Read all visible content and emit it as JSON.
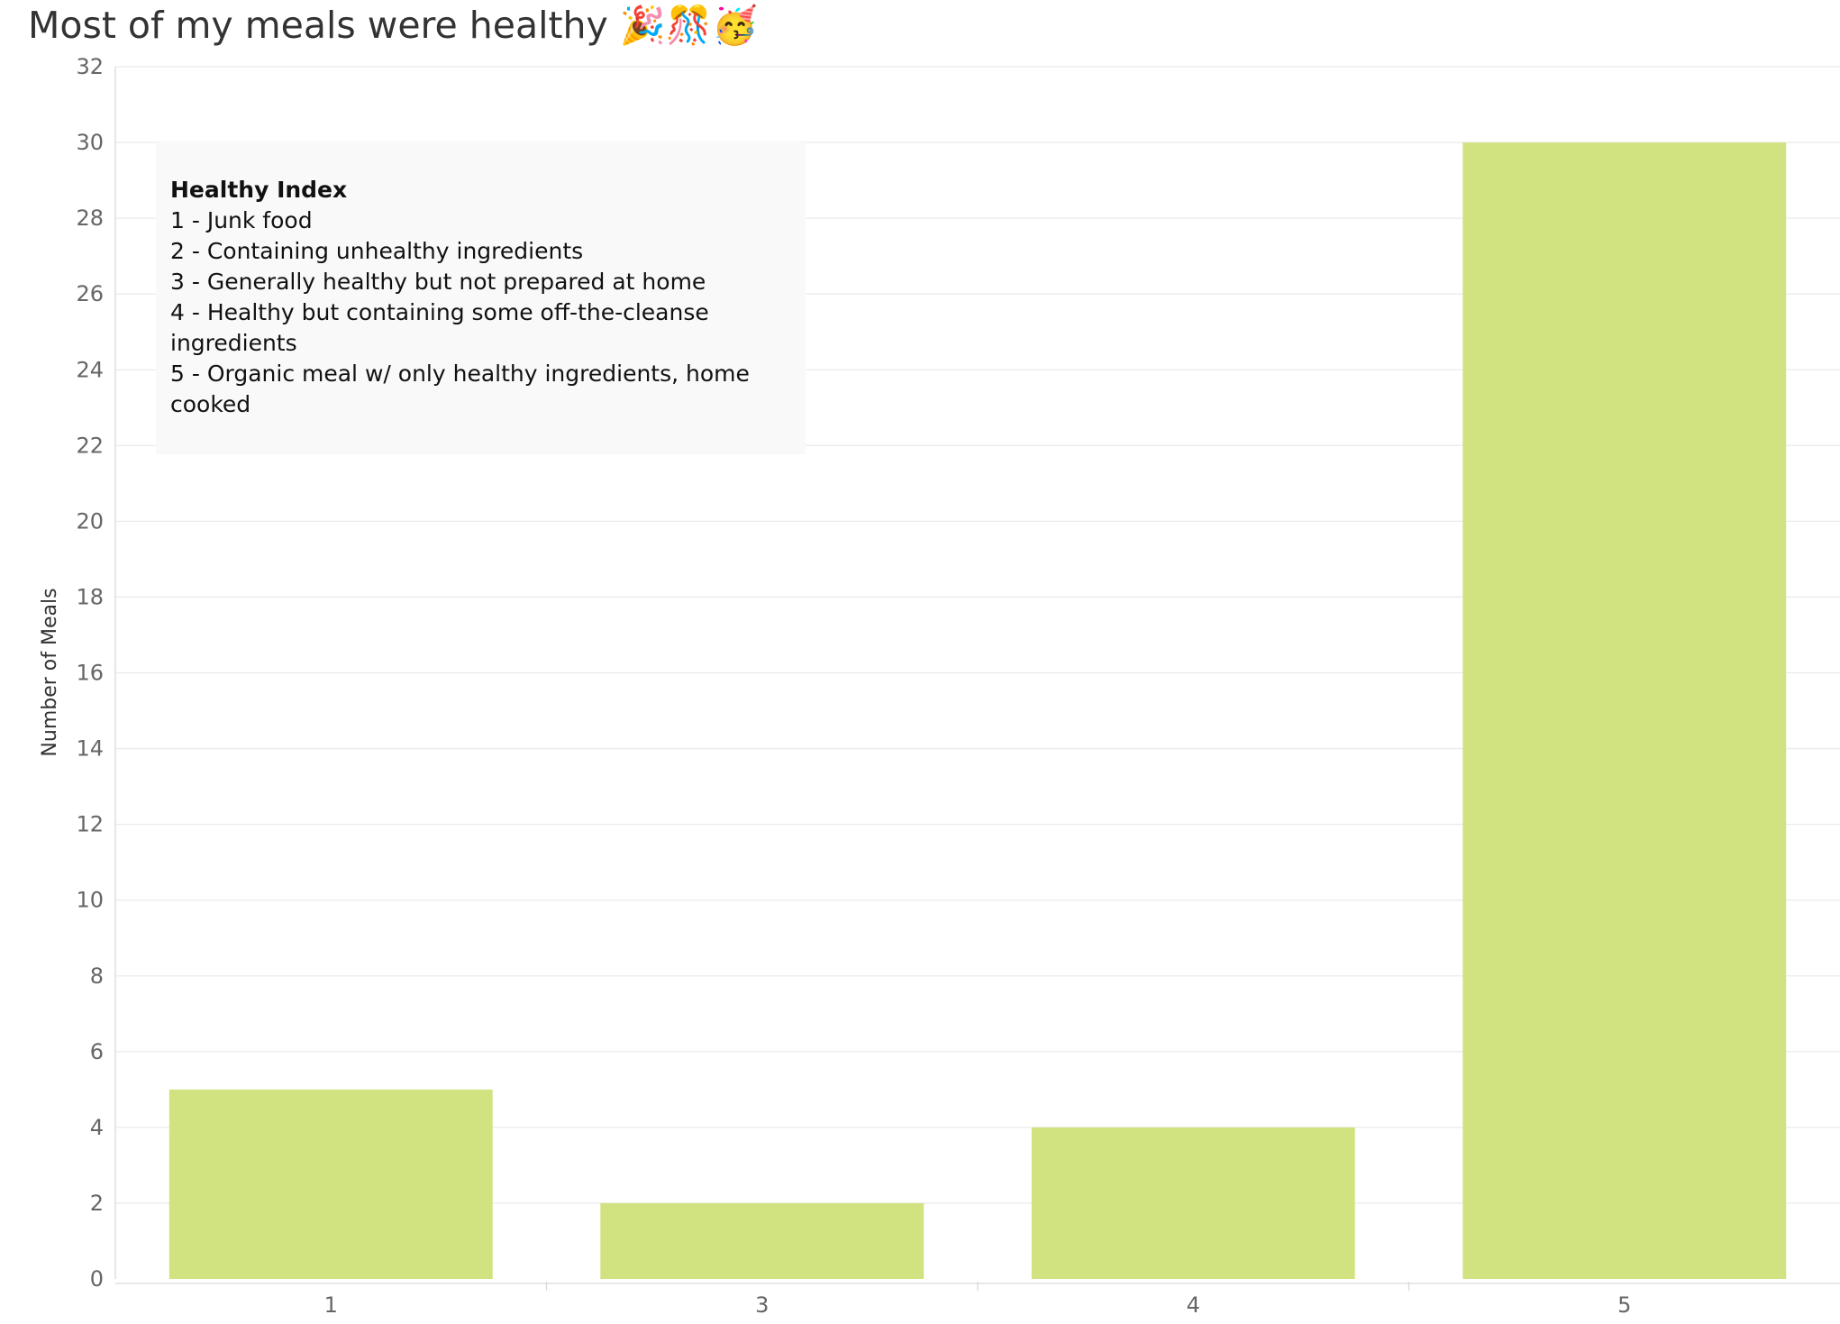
{
  "title": "Most of my meals were healthy 🎉🎊🥳",
  "annotation": {
    "heading": "Healthy Index",
    "items": [
      "1 - Junk food",
      "2 - Containing unhealthy ingredients",
      "3 - Generally healthy but not prepared at home",
      "4 - Healthy but containing some off-the-cleanse ingredients",
      "5 - Organic meal w/ only healthy ingredients, home cooked"
    ]
  },
  "colors": {
    "bar": "#d1e281",
    "annotation_bg": "#f9f9f9",
    "gridline": "#ebebeb"
  },
  "chart_data": {
    "type": "bar",
    "title": "Most of my meals were healthy 🎉🎊🥳",
    "xlabel": "",
    "ylabel": "Number of Meals",
    "categories": [
      "1",
      "3",
      "4",
      "5"
    ],
    "values": [
      5,
      2,
      4,
      30
    ],
    "ylim": [
      0,
      32
    ],
    "yticks": [
      0,
      2,
      4,
      6,
      8,
      10,
      12,
      14,
      16,
      18,
      20,
      22,
      24,
      26,
      28,
      30,
      32
    ],
    "grid": true,
    "legend": "none"
  }
}
